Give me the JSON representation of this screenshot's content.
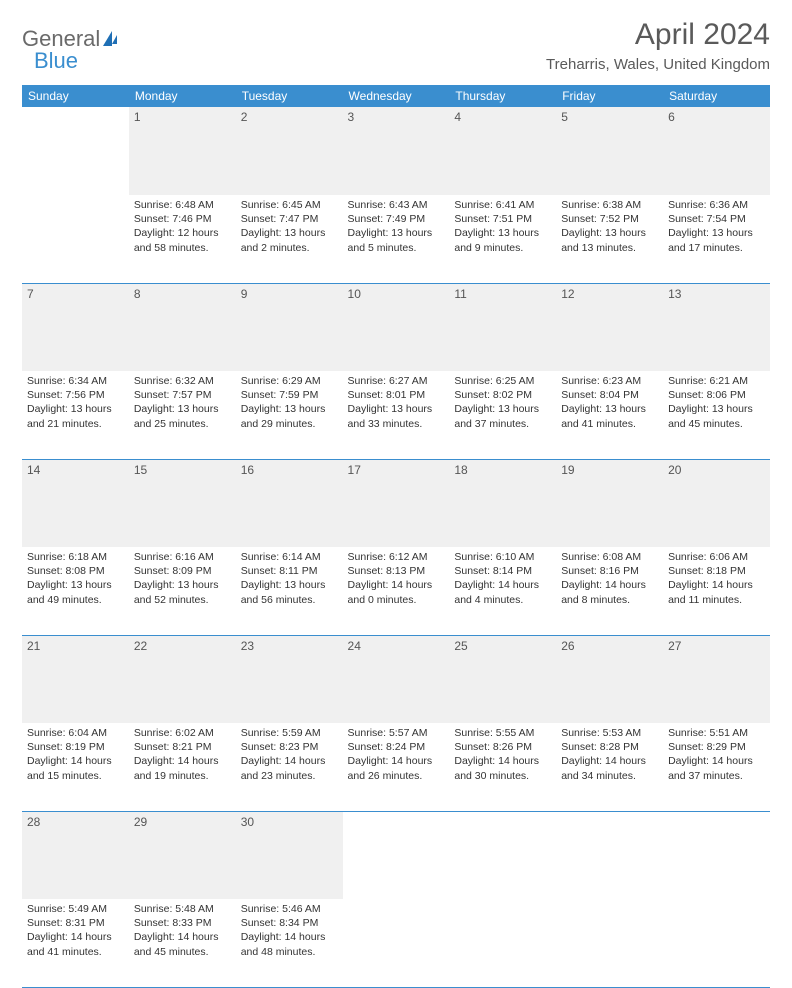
{
  "logo": {
    "word1": "General",
    "word2": "Blue"
  },
  "title": "April 2024",
  "location": "Treharris, Wales, United Kingdom",
  "weekdays": [
    "Sunday",
    "Monday",
    "Tuesday",
    "Wednesday",
    "Thursday",
    "Friday",
    "Saturday"
  ],
  "colors": {
    "header_bg": "#3a8ecf",
    "header_text": "#ffffff",
    "daynum_bg": "#f0f0f0",
    "row_divider": "#3a8ecf",
    "text": "#333333",
    "title_text": "#5a5a5a",
    "logo_gray": "#6a6a6a",
    "logo_blue": "#3a8ecf"
  },
  "typography": {
    "title_fontsize": 30,
    "location_fontsize": 15,
    "weekday_fontsize": 12,
    "daynum_fontsize": 12,
    "cell_fontsize": 10.5
  },
  "weeks": [
    {
      "nums": [
        "",
        "1",
        "2",
        "3",
        "4",
        "5",
        "6"
      ],
      "cells": [
        [],
        [
          "Sunrise: 6:48 AM",
          "Sunset: 7:46 PM",
          "Daylight: 12 hours and 58 minutes."
        ],
        [
          "Sunrise: 6:45 AM",
          "Sunset: 7:47 PM",
          "Daylight: 13 hours and 2 minutes."
        ],
        [
          "Sunrise: 6:43 AM",
          "Sunset: 7:49 PM",
          "Daylight: 13 hours and 5 minutes."
        ],
        [
          "Sunrise: 6:41 AM",
          "Sunset: 7:51 PM",
          "Daylight: 13 hours and 9 minutes."
        ],
        [
          "Sunrise: 6:38 AM",
          "Sunset: 7:52 PM",
          "Daylight: 13 hours and 13 minutes."
        ],
        [
          "Sunrise: 6:36 AM",
          "Sunset: 7:54 PM",
          "Daylight: 13 hours and 17 minutes."
        ]
      ]
    },
    {
      "nums": [
        "7",
        "8",
        "9",
        "10",
        "11",
        "12",
        "13"
      ],
      "cells": [
        [
          "Sunrise: 6:34 AM",
          "Sunset: 7:56 PM",
          "Daylight: 13 hours and 21 minutes."
        ],
        [
          "Sunrise: 6:32 AM",
          "Sunset: 7:57 PM",
          "Daylight: 13 hours and 25 minutes."
        ],
        [
          "Sunrise: 6:29 AM",
          "Sunset: 7:59 PM",
          "Daylight: 13 hours and 29 minutes."
        ],
        [
          "Sunrise: 6:27 AM",
          "Sunset: 8:01 PM",
          "Daylight: 13 hours and 33 minutes."
        ],
        [
          "Sunrise: 6:25 AM",
          "Sunset: 8:02 PM",
          "Daylight: 13 hours and 37 minutes."
        ],
        [
          "Sunrise: 6:23 AM",
          "Sunset: 8:04 PM",
          "Daylight: 13 hours and 41 minutes."
        ],
        [
          "Sunrise: 6:21 AM",
          "Sunset: 8:06 PM",
          "Daylight: 13 hours and 45 minutes."
        ]
      ]
    },
    {
      "nums": [
        "14",
        "15",
        "16",
        "17",
        "18",
        "19",
        "20"
      ],
      "cells": [
        [
          "Sunrise: 6:18 AM",
          "Sunset: 8:08 PM",
          "Daylight: 13 hours and 49 minutes."
        ],
        [
          "Sunrise: 6:16 AM",
          "Sunset: 8:09 PM",
          "Daylight: 13 hours and 52 minutes."
        ],
        [
          "Sunrise: 6:14 AM",
          "Sunset: 8:11 PM",
          "Daylight: 13 hours and 56 minutes."
        ],
        [
          "Sunrise: 6:12 AM",
          "Sunset: 8:13 PM",
          "Daylight: 14 hours and 0 minutes."
        ],
        [
          "Sunrise: 6:10 AM",
          "Sunset: 8:14 PM",
          "Daylight: 14 hours and 4 minutes."
        ],
        [
          "Sunrise: 6:08 AM",
          "Sunset: 8:16 PM",
          "Daylight: 14 hours and 8 minutes."
        ],
        [
          "Sunrise: 6:06 AM",
          "Sunset: 8:18 PM",
          "Daylight: 14 hours and 11 minutes."
        ]
      ]
    },
    {
      "nums": [
        "21",
        "22",
        "23",
        "24",
        "25",
        "26",
        "27"
      ],
      "cells": [
        [
          "Sunrise: 6:04 AM",
          "Sunset: 8:19 PM",
          "Daylight: 14 hours and 15 minutes."
        ],
        [
          "Sunrise: 6:02 AM",
          "Sunset: 8:21 PM",
          "Daylight: 14 hours and 19 minutes."
        ],
        [
          "Sunrise: 5:59 AM",
          "Sunset: 8:23 PM",
          "Daylight: 14 hours and 23 minutes."
        ],
        [
          "Sunrise: 5:57 AM",
          "Sunset: 8:24 PM",
          "Daylight: 14 hours and 26 minutes."
        ],
        [
          "Sunrise: 5:55 AM",
          "Sunset: 8:26 PM",
          "Daylight: 14 hours and 30 minutes."
        ],
        [
          "Sunrise: 5:53 AM",
          "Sunset: 8:28 PM",
          "Daylight: 14 hours and 34 minutes."
        ],
        [
          "Sunrise: 5:51 AM",
          "Sunset: 8:29 PM",
          "Daylight: 14 hours and 37 minutes."
        ]
      ]
    },
    {
      "nums": [
        "28",
        "29",
        "30",
        "",
        "",
        "",
        ""
      ],
      "cells": [
        [
          "Sunrise: 5:49 AM",
          "Sunset: 8:31 PM",
          "Daylight: 14 hours and 41 minutes."
        ],
        [
          "Sunrise: 5:48 AM",
          "Sunset: 8:33 PM",
          "Daylight: 14 hours and 45 minutes."
        ],
        [
          "Sunrise: 5:46 AM",
          "Sunset: 8:34 PM",
          "Daylight: 14 hours and 48 minutes."
        ],
        [],
        [],
        [],
        []
      ]
    }
  ]
}
